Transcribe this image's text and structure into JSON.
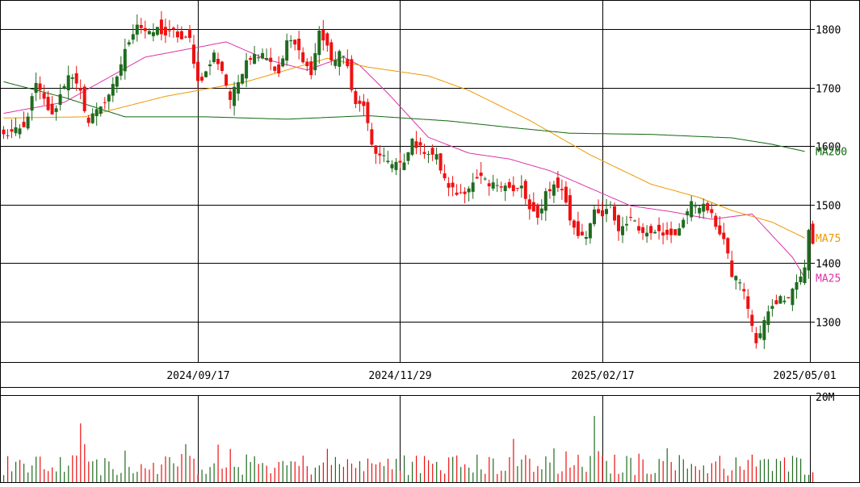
{
  "chart_data": {
    "type": "candlestick",
    "price_axis": {
      "ticks": [
        1300,
        1400,
        1500,
        1600,
        1700,
        1800
      ],
      "labels": [
        "1300",
        "1400",
        "1500",
        "1600",
        "1700",
        "1800"
      ],
      "ylim": [
        1230,
        1850
      ],
      "position": "right"
    },
    "x_labels": [
      {
        "label": "2024/09/17",
        "index": 48
      },
      {
        "label": "2024/11/29",
        "index": 98
      },
      {
        "label": "2025/02/17",
        "index": 148
      },
      {
        "label": "2025/05/01",
        "index": 198
      }
    ],
    "colors": {
      "up": "#1f6b1f",
      "down": "#ee1111",
      "ma25": "#dd33aa",
      "ma75": "#ee9900",
      "ma200": "#116611",
      "grid": "#000000"
    },
    "moving_averages": [
      {
        "name": "MA25",
        "color": "#dd33aa",
        "points": [
          [
            0,
            1656
          ],
          [
            15,
            1675
          ],
          [
            35,
            1752
          ],
          [
            55,
            1778
          ],
          [
            65,
            1748
          ],
          [
            75,
            1730
          ],
          [
            84,
            1752
          ],
          [
            88,
            1738
          ],
          [
            95,
            1690
          ],
          [
            105,
            1615
          ],
          [
            115,
            1588
          ],
          [
            125,
            1578
          ],
          [
            135,
            1558
          ],
          [
            145,
            1528
          ],
          [
            155,
            1498
          ],
          [
            165,
            1488
          ],
          [
            175,
            1475
          ],
          [
            185,
            1484
          ],
          [
            195,
            1410
          ],
          [
            198,
            1375
          ]
        ]
      },
      {
        "name": "MA75",
        "color": "#ee9900",
        "points": [
          [
            0,
            1648
          ],
          [
            20,
            1650
          ],
          [
            40,
            1685
          ],
          [
            60,
            1710
          ],
          [
            70,
            1730
          ],
          [
            80,
            1750
          ],
          [
            90,
            1735
          ],
          [
            105,
            1720
          ],
          [
            115,
            1695
          ],
          [
            130,
            1644
          ],
          [
            145,
            1585
          ],
          [
            160,
            1535
          ],
          [
            172,
            1512
          ],
          [
            180,
            1490
          ],
          [
            190,
            1470
          ],
          [
            198,
            1443
          ]
        ]
      },
      {
        "name": "MA200",
        "color": "#116611",
        "points": [
          [
            0,
            1710
          ],
          [
            15,
            1683
          ],
          [
            30,
            1650
          ],
          [
            50,
            1650
          ],
          [
            70,
            1646
          ],
          [
            90,
            1652
          ],
          [
            110,
            1643
          ],
          [
            125,
            1632
          ],
          [
            140,
            1622
          ],
          [
            160,
            1620
          ],
          [
            180,
            1614
          ],
          [
            190,
            1603
          ],
          [
            198,
            1591
          ]
        ]
      }
    ],
    "ma_labels": [
      {
        "name": "MA200",
        "value": 1591
      },
      {
        "name": "MA75",
        "value": 1443
      },
      {
        "name": "MA25",
        "value": 1375
      }
    ],
    "volume_axis": {
      "label": "20M",
      "max": 20
    },
    "volume_peaks": [
      {
        "index": 19,
        "value": 13.5
      },
      {
        "index": 146,
        "value": 15.2
      }
    ],
    "close_anchors": [
      [
        0,
        1618
      ],
      [
        5,
        1630
      ],
      [
        8,
        1705
      ],
      [
        12,
        1650
      ],
      [
        16,
        1725
      ],
      [
        19,
        1690
      ],
      [
        21,
        1640
      ],
      [
        23,
        1665
      ],
      [
        26,
        1682
      ],
      [
        28,
        1720
      ],
      [
        31,
        1782
      ],
      [
        33,
        1810
      ],
      [
        36,
        1790
      ],
      [
        38,
        1800
      ],
      [
        40,
        1790
      ],
      [
        42,
        1795
      ],
      [
        44,
        1782
      ],
      [
        46,
        1782
      ],
      [
        48,
        1710
      ],
      [
        50,
        1725
      ],
      [
        52,
        1757
      ],
      [
        54,
        1730
      ],
      [
        56,
        1680
      ],
      [
        58,
        1710
      ],
      [
        60,
        1750
      ],
      [
        62,
        1755
      ],
      [
        64,
        1762
      ],
      [
        66,
        1745
      ],
      [
        68,
        1720
      ],
      [
        70,
        1780
      ],
      [
        72,
        1772
      ],
      [
        74,
        1750
      ],
      [
        76,
        1722
      ],
      [
        78,
        1795
      ],
      [
        80,
        1772
      ],
      [
        81,
        1740
      ],
      [
        83,
        1762
      ],
      [
        85,
        1735
      ],
      [
        87,
        1670
      ],
      [
        89,
        1670
      ],
      [
        91,
        1600
      ],
      [
        93,
        1580
      ],
      [
        95,
        1575
      ],
      [
        97,
        1572
      ],
      [
        99,
        1567
      ],
      [
        101,
        1610
      ],
      [
        103,
        1595
      ],
      [
        105,
        1590
      ],
      [
        107,
        1582
      ],
      [
        109,
        1540
      ],
      [
        112,
        1518
      ],
      [
        114,
        1525
      ],
      [
        116,
        1535
      ],
      [
        118,
        1545
      ],
      [
        120,
        1530
      ],
      [
        122,
        1536
      ],
      [
        124,
        1536
      ],
      [
        126,
        1521
      ],
      [
        128,
        1530
      ],
      [
        130,
        1490
      ],
      [
        132,
        1475
      ],
      [
        134,
        1522
      ],
      [
        136,
        1532
      ],
      [
        138,
        1527
      ],
      [
        140,
        1475
      ],
      [
        142,
        1450
      ],
      [
        144,
        1450
      ],
      [
        146,
        1485
      ],
      [
        148,
        1480
      ],
      [
        150,
        1496
      ],
      [
        152,
        1455
      ],
      [
        154,
        1472
      ],
      [
        156,
        1475
      ],
      [
        158,
        1450
      ],
      [
        160,
        1457
      ],
      [
        162,
        1460
      ],
      [
        164,
        1445
      ],
      [
        166,
        1445
      ],
      [
        168,
        1478
      ],
      [
        170,
        1500
      ],
      [
        172,
        1500
      ],
      [
        174,
        1492
      ],
      [
        176,
        1466
      ],
      [
        178,
        1440
      ],
      [
        180,
        1380
      ],
      [
        182,
        1370
      ],
      [
        184,
        1325
      ],
      [
        186,
        1260
      ],
      [
        188,
        1300
      ],
      [
        190,
        1330
      ],
      [
        192,
        1340
      ],
      [
        194,
        1345
      ],
      [
        196,
        1368
      ],
      [
        198,
        1390
      ],
      [
        199,
        1455
      ],
      [
        200,
        1432
      ]
    ]
  }
}
